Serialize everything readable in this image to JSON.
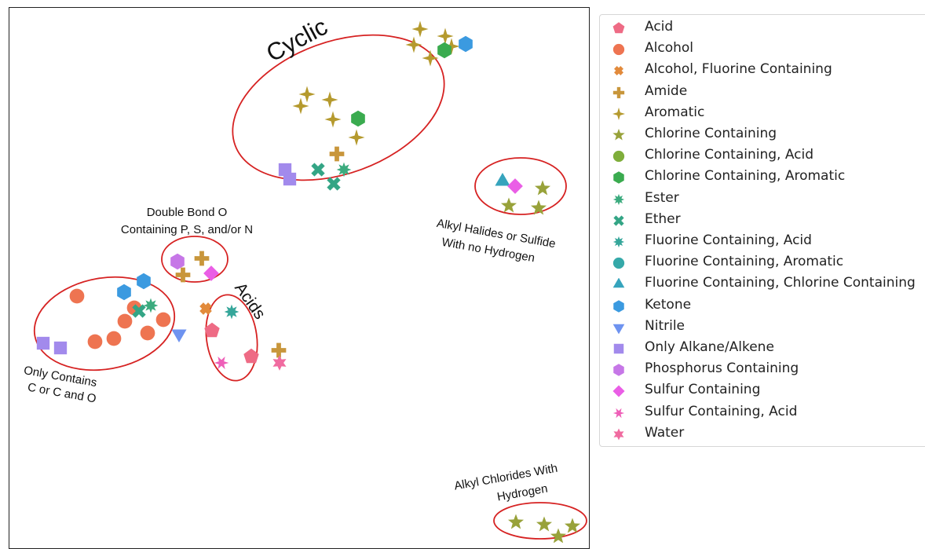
{
  "chart_data": {
    "type": "scatter",
    "title": "",
    "xlabel": "",
    "ylabel": "",
    "grid": false,
    "legend_placement": "outside-right",
    "series": [
      {
        "name": "Acid",
        "marker": "pentagon",
        "color": "#ee6b85",
        "points": [
          [
            259,
            412
          ],
          [
            309,
            445
          ]
        ]
      },
      {
        "name": "Alcohol",
        "marker": "circle",
        "color": "#ee7451",
        "points": [
          [
            87,
            368
          ],
          [
            148,
            400
          ],
          [
            197,
            398
          ],
          [
            110,
            426
          ],
          [
            134,
            422
          ],
          [
            160,
            383
          ],
          [
            177,
            415
          ]
        ]
      },
      {
        "name": "Alcohol, Fluorine Containing",
        "marker": "x-square",
        "color": "#e28a3b",
        "points": [
          [
            251,
            384
          ]
        ]
      },
      {
        "name": "Amide",
        "marker": "plus",
        "color": "#c8963b",
        "points": [
          [
            246,
            320
          ],
          [
            222,
            341
          ],
          [
            418,
            187
          ],
          [
            344,
            437
          ]
        ]
      },
      {
        "name": "Aromatic",
        "marker": "diamond-star",
        "color": "#b59a2e",
        "points": [
          [
            524,
            28
          ],
          [
            516,
            48
          ],
          [
            556,
            37
          ],
          [
            564,
            50
          ],
          [
            537,
            65
          ],
          [
            380,
            111
          ],
          [
            372,
            126
          ],
          [
            409,
            118
          ],
          [
            413,
            143
          ],
          [
            443,
            166
          ]
        ]
      },
      {
        "name": "Chlorine Containing",
        "marker": "star",
        "color": "#98a23a",
        "points": [
          [
            680,
            231
          ],
          [
            637,
            253
          ],
          [
            675,
            256
          ],
          [
            646,
            656
          ],
          [
            682,
            659
          ],
          [
            718,
            661
          ],
          [
            700,
            674
          ]
        ]
      },
      {
        "name": "Chlorine Containing, Acid",
        "marker": "circle",
        "color": "#7fae3b",
        "points": []
      },
      {
        "name": "Chlorine Containing, Aromatic",
        "marker": "hexagon",
        "color": "#3aab4f",
        "points": [
          [
            555,
            55
          ],
          [
            445,
            142
          ]
        ]
      },
      {
        "name": "Ester",
        "marker": "star8",
        "color": "#3bab7e",
        "points": [
          [
            181,
            380
          ],
          [
            427,
            207
          ]
        ]
      },
      {
        "name": "Ether",
        "marker": "x",
        "color": "#33a585",
        "points": [
          [
            166,
            387
          ],
          [
            394,
            207
          ],
          [
            414,
            225
          ]
        ]
      },
      {
        "name": "Fluorine Containing, Acid",
        "marker": "star8",
        "color": "#35a69a",
        "points": [
          [
            284,
            388
          ]
        ]
      },
      {
        "name": "Fluorine Containing, Aromatic",
        "marker": "circle",
        "color": "#35a9a9",
        "points": []
      },
      {
        "name": "Fluorine Containing, Chlorine Containing",
        "marker": "triangle-up",
        "color": "#36a4bd",
        "points": [
          [
            629,
            222
          ]
        ]
      },
      {
        "name": "Ketone",
        "marker": "hexagon",
        "color": "#3b9ae0",
        "points": [
          [
            582,
            47
          ],
          [
            147,
            363
          ],
          [
            172,
            349
          ]
        ]
      },
      {
        "name": "Nitrile",
        "marker": "triangle-down",
        "color": "#6e93f0",
        "points": [
          [
            217,
            416
          ]
        ]
      },
      {
        "name": "Only Alkane/Alkene",
        "marker": "square",
        "color": "#a28aec",
        "points": [
          [
            352,
            207
          ],
          [
            358,
            219
          ],
          [
            44,
            428
          ],
          [
            66,
            434
          ]
        ]
      },
      {
        "name": "Phosphorus Containing",
        "marker": "hexagon",
        "color": "#c677e7",
        "points": [
          [
            215,
            324
          ]
        ]
      },
      {
        "name": "Sulfur Containing",
        "marker": "diamond",
        "color": "#ea5ee6",
        "points": [
          [
            645,
            228
          ],
          [
            258,
            339
          ]
        ]
      },
      {
        "name": "Sulfur Containing, Acid",
        "marker": "asterisk",
        "color": "#ee5fb8",
        "points": [
          [
            271,
            453
          ]
        ]
      },
      {
        "name": "Water",
        "marker": "star6",
        "color": "#f06ba0",
        "points": [
          [
            345,
            453
          ]
        ]
      }
    ],
    "annotations": [
      {
        "text": "Cyclic"
      },
      {
        "text": "Double Bond O",
        "text2": "Containing P, S, and/or N"
      },
      {
        "text": "Acids"
      },
      {
        "text": "Alkyl Halides or Sulfide",
        "text2": "With no Hydrogen"
      },
      {
        "text": "Only Contains",
        "text2": "C or C and O"
      },
      {
        "text": "Alkyl Chlorides With",
        "text2": "Hydrogen"
      }
    ]
  }
}
